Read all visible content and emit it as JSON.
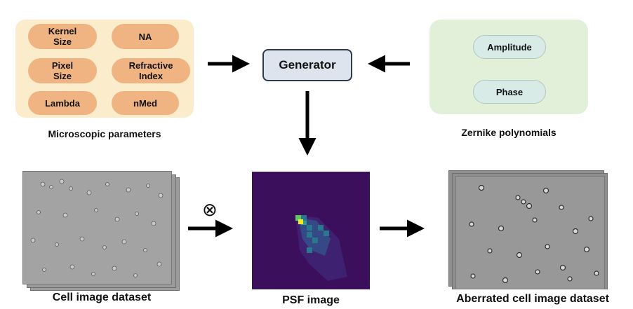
{
  "microscopic": {
    "caption": "Microscopic parameters",
    "params": [
      "Kernel\nSize",
      "NA",
      "Pixel\nSize",
      "Refractive\nIndex",
      "Lambda",
      "nMed"
    ]
  },
  "zernike": {
    "caption": "Zernike polynomials",
    "items": [
      "Amplitude",
      "Phase"
    ]
  },
  "generator": {
    "label": "Generator"
  },
  "operator": "⊗",
  "datasets": {
    "cell": "Cell image dataset",
    "psf": "PSF image",
    "aberrated": "Aberrated cell image dataset"
  },
  "colors": {
    "param_panel": "#fbeccc",
    "param_pill": "#f0b483",
    "zernike_panel": "#e2efd9",
    "zernike_pill": "#d8ebe6",
    "generator_fill": "#dde4ee",
    "psf_background": "#3b0f5c",
    "psf_peak": "#f7e724",
    "arrow": "#000000"
  }
}
